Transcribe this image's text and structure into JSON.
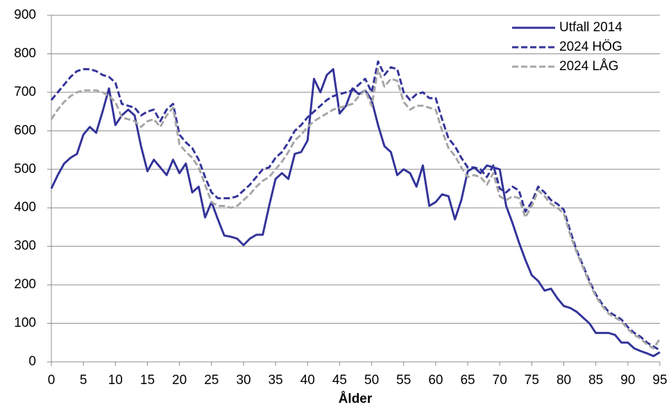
{
  "chart_data": {
    "type": "line",
    "xlabel": "Ålder",
    "x": [
      0,
      1,
      2,
      3,
      4,
      5,
      6,
      7,
      8,
      9,
      10,
      11,
      12,
      13,
      14,
      15,
      16,
      17,
      18,
      19,
      20,
      21,
      22,
      23,
      24,
      25,
      26,
      27,
      28,
      29,
      30,
      31,
      32,
      33,
      34,
      35,
      36,
      37,
      38,
      39,
      40,
      41,
      42,
      43,
      44,
      45,
      46,
      47,
      48,
      49,
      50,
      51,
      52,
      53,
      54,
      55,
      56,
      57,
      58,
      59,
      60,
      61,
      62,
      63,
      64,
      65,
      66,
      67,
      68,
      69,
      70,
      71,
      72,
      73,
      74,
      75,
      76,
      77,
      78,
      79,
      80,
      81,
      82,
      83,
      84,
      85,
      86,
      87,
      88,
      89,
      90,
      91,
      92,
      93,
      94,
      95
    ],
    "series": [
      {
        "name": "Utfall 2014",
        "color": "#33339a",
        "linestyle": "solid",
        "values": [
          450,
          485,
          515,
          530,
          540,
          590,
          610,
          595,
          650,
          710,
          615,
          640,
          655,
          640,
          560,
          495,
          525,
          505,
          485,
          525,
          490,
          515,
          440,
          455,
          375,
          415,
          370,
          328,
          325,
          320,
          303,
          320,
          330,
          330,
          405,
          475,
          490,
          475,
          540,
          545,
          575,
          735,
          700,
          745,
          760,
          645,
          665,
          710,
          695,
          705,
          680,
          615,
          560,
          545,
          485,
          500,
          490,
          455,
          510,
          405,
          415,
          435,
          430,
          370,
          420,
          495,
          505,
          490,
          510,
          505,
          500,
          405,
          360,
          310,
          265,
          225,
          210,
          185,
          190,
          165,
          145,
          140,
          130,
          115,
          100,
          75,
          75,
          75,
          70,
          50,
          50,
          35,
          28,
          22,
          15,
          25
        ]
      },
      {
        "name": "2024 HÖG",
        "color": "#33339a",
        "linestyle": "dashed",
        "values": [
          680,
          700,
          720,
          740,
          755,
          760,
          760,
          755,
          745,
          740,
          725,
          670,
          665,
          660,
          640,
          650,
          655,
          625,
          655,
          670,
          590,
          570,
          555,
          525,
          480,
          440,
          425,
          425,
          425,
          430,
          445,
          460,
          480,
          500,
          505,
          530,
          545,
          570,
          600,
          615,
          635,
          650,
          665,
          680,
          690,
          695,
          700,
          705,
          720,
          735,
          700,
          780,
          745,
          765,
          760,
          700,
          680,
          695,
          700,
          685,
          685,
          630,
          580,
          560,
          530,
          505,
          505,
          500,
          480,
          510,
          450,
          440,
          455,
          445,
          390,
          415,
          455,
          440,
          420,
          410,
          395,
          340,
          290,
          250,
          210,
          175,
          150,
          130,
          120,
          110,
          90,
          75,
          65,
          50,
          40,
          30
        ]
      },
      {
        "name": "2024 LÅG",
        "color": "#a6a6a6",
        "linestyle": "dashed",
        "values": [
          630,
          655,
          675,
          690,
          700,
          705,
          705,
          705,
          700,
          690,
          675,
          635,
          630,
          625,
          610,
          625,
          630,
          610,
          640,
          660,
          565,
          545,
          530,
          505,
          460,
          415,
          405,
          405,
          400,
          405,
          420,
          435,
          455,
          470,
          480,
          500,
          520,
          545,
          575,
          590,
          610,
          625,
          635,
          645,
          655,
          660,
          665,
          670,
          690,
          705,
          665,
          760,
          715,
          735,
          730,
          675,
          655,
          665,
          665,
          660,
          655,
          600,
          555,
          535,
          505,
          480,
          485,
          480,
          460,
          490,
          430,
          420,
          430,
          425,
          375,
          405,
          445,
          430,
          410,
          400,
          385,
          330,
          285,
          245,
          205,
          170,
          145,
          125,
          115,
          105,
          85,
          70,
          60,
          45,
          35,
          60
        ]
      }
    ],
    "xlim": [
      0,
      95
    ],
    "xticks": [
      0,
      5,
      10,
      15,
      20,
      25,
      30,
      35,
      40,
      45,
      50,
      55,
      60,
      65,
      70,
      75,
      80,
      85,
      90,
      95
    ],
    "ylim": [
      0,
      900
    ],
    "yticks": [
      0,
      100,
      200,
      300,
      400,
      500,
      600,
      700,
      800,
      900
    ],
    "grid": true,
    "legend": "upper right"
  }
}
